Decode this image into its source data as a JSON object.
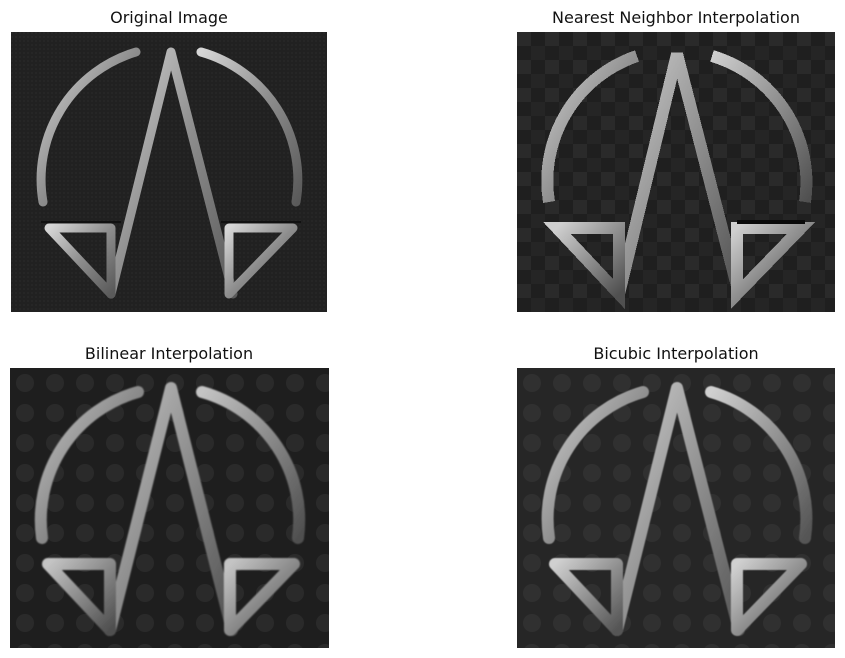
{
  "figure": {
    "panels": [
      {
        "title": "Original Image",
        "style": "original"
      },
      {
        "title": "Nearest Neighbor Interpolation",
        "style": "nearest"
      },
      {
        "title": "Bilinear Interpolation",
        "style": "bilinear"
      },
      {
        "title": "Bicubic Interpolation",
        "style": "bicubic"
      }
    ],
    "subject": "logo-emblem",
    "colors": {
      "background": "#ffffff",
      "image_dark": "#232323",
      "image_dark_alt": "#2b2b2b",
      "metal_light": "#c8c8c8",
      "metal_mid": "#8a8a8a",
      "metal_dark": "#4a4a4a"
    }
  }
}
